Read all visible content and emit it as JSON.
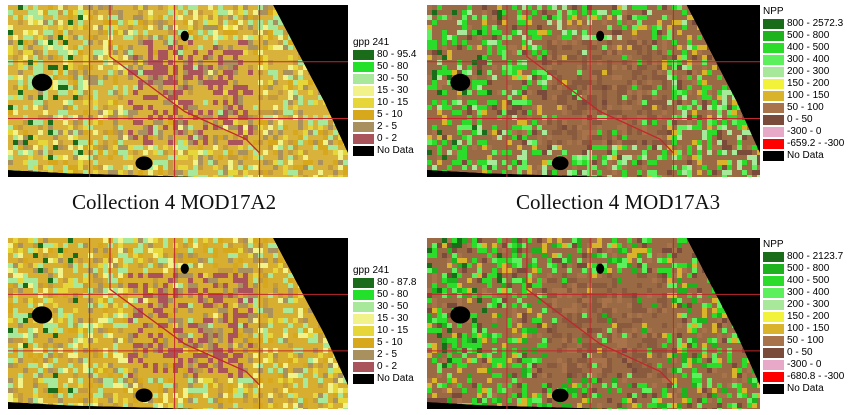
{
  "colors": {
    "outside": "#000000",
    "grid": "#c0282d",
    "border": "#c0282d",
    "water": "#000000"
  },
  "panels": [
    {
      "id": "c4-gpp",
      "caption": "Collection 4 MOD17A2",
      "legend": {
        "title": "gpp 241",
        "items": [
          {
            "label": "80 - 95.4",
            "color": "#1a6b1a"
          },
          {
            "label": "50 - 80",
            "color": "#23e02b"
          },
          {
            "label": "30 - 50",
            "color": "#a7e89a"
          },
          {
            "label": "15 - 30",
            "color": "#f2f28a"
          },
          {
            "label": "10 - 15",
            "color": "#e6d63a"
          },
          {
            "label": "5 - 10",
            "color": "#d8a81c"
          },
          {
            "label": "2 - 5",
            "color": "#a8915e"
          },
          {
            "label": "0 - 2",
            "color": "#a9545a"
          },
          {
            "label": "No Data",
            "color": "#000000"
          }
        ]
      },
      "fill": {
        "dominant": "#d8b23a",
        "mix": [
          "#e6d63a",
          "#d8a81c",
          "#a8915e",
          "#f2f28a",
          "#a7e89a",
          "#c39a3e"
        ],
        "desert": "#a9545a",
        "desert_alt": "#a8915e",
        "green": "#a7e89a",
        "dark_green": "#1a6b1a"
      }
    },
    {
      "id": "c4-npp",
      "caption": "Collection 4 MOD17A3",
      "legend": {
        "title": "NPP",
        "items": [
          {
            "label": "800 - 2572.3",
            "color": "#1a6b1a"
          },
          {
            "label": "500 - 800",
            "color": "#1fb21f"
          },
          {
            "label": "400 - 500",
            "color": "#2bdc2b"
          },
          {
            "label": "300 - 400",
            "color": "#5cf05c"
          },
          {
            "label": "200 - 300",
            "color": "#a8e89a"
          },
          {
            "label": "150 - 200",
            "color": "#f2f23a"
          },
          {
            "label": "100 - 150",
            "color": "#d9b42a"
          },
          {
            "label": "50 - 100",
            "color": "#a8724a"
          },
          {
            "label": "0 - 50",
            "color": "#7a4a3a"
          },
          {
            "label": "-300 - 0",
            "color": "#e8a8c8"
          },
          {
            "label": "-659.2 - -300",
            "color": "#ff0000"
          },
          {
            "label": "No Data",
            "color": "#000000"
          }
        ]
      },
      "fill": {
        "dominant": "#9a6a44",
        "mix": [
          "#a8724a",
          "#d9b42a",
          "#7a4a3a",
          "#5cf05c",
          "#2bdc2b",
          "#a8e89a"
        ],
        "desert": "#8a5a3e",
        "desert_alt": "#a8724a",
        "green": "#2bdc2b",
        "dark_green": "#1a6b1a"
      }
    },
    {
      "id": "c5-gpp",
      "caption": "",
      "legend": {
        "title": "gpp 241",
        "items": [
          {
            "label": "80 - 87.8",
            "color": "#1a6b1a"
          },
          {
            "label": "50 - 80",
            "color": "#23e02b"
          },
          {
            "label": "30 - 50",
            "color": "#a7e89a"
          },
          {
            "label": "15 - 30",
            "color": "#f2f28a"
          },
          {
            "label": "10 - 15",
            "color": "#e6d63a"
          },
          {
            "label": "5 - 10",
            "color": "#d8a81c"
          },
          {
            "label": "2 - 5",
            "color": "#a8915e"
          },
          {
            "label": "0 - 2",
            "color": "#a9545a"
          },
          {
            "label": "No Data",
            "color": "#000000"
          }
        ]
      },
      "fill": {
        "dominant": "#d8ae30",
        "mix": [
          "#e6d63a",
          "#d8a81c",
          "#a8915e",
          "#f2f28a",
          "#a7e89a",
          "#c39a3e"
        ],
        "desert": "#a9545a",
        "desert_alt": "#a8915e",
        "green": "#a7e89a",
        "dark_green": "#1a6b1a"
      }
    },
    {
      "id": "c5-npp",
      "caption": "",
      "legend": {
        "title": "NPP",
        "items": [
          {
            "label": "800 - 2123.7",
            "color": "#1a6b1a"
          },
          {
            "label": "500 - 800",
            "color": "#1fb21f"
          },
          {
            "label": "400 - 500",
            "color": "#2bdc2b"
          },
          {
            "label": "300 - 400",
            "color": "#5cf05c"
          },
          {
            "label": "200 - 300",
            "color": "#a8e89a"
          },
          {
            "label": "150 - 200",
            "color": "#f2f23a"
          },
          {
            "label": "100 - 150",
            "color": "#d9b42a"
          },
          {
            "label": "50 - 100",
            "color": "#a8724a"
          },
          {
            "label": "0 - 50",
            "color": "#7a4a3a"
          },
          {
            "label": "-300 - 0",
            "color": "#e8a8c8"
          },
          {
            "label": "-680.8 - -300",
            "color": "#ff0000"
          },
          {
            "label": "No Data",
            "color": "#000000"
          }
        ]
      },
      "fill": {
        "dominant": "#9a6a44",
        "mix": [
          "#a8724a",
          "#2bdc2b",
          "#7a4a3a",
          "#5cf05c",
          "#d9b42a",
          "#1fb21f"
        ],
        "desert": "#8a5a3e",
        "desert_alt": "#a8724a",
        "green": "#2bdc2b",
        "dark_green": "#1a6b1a"
      }
    }
  ]
}
